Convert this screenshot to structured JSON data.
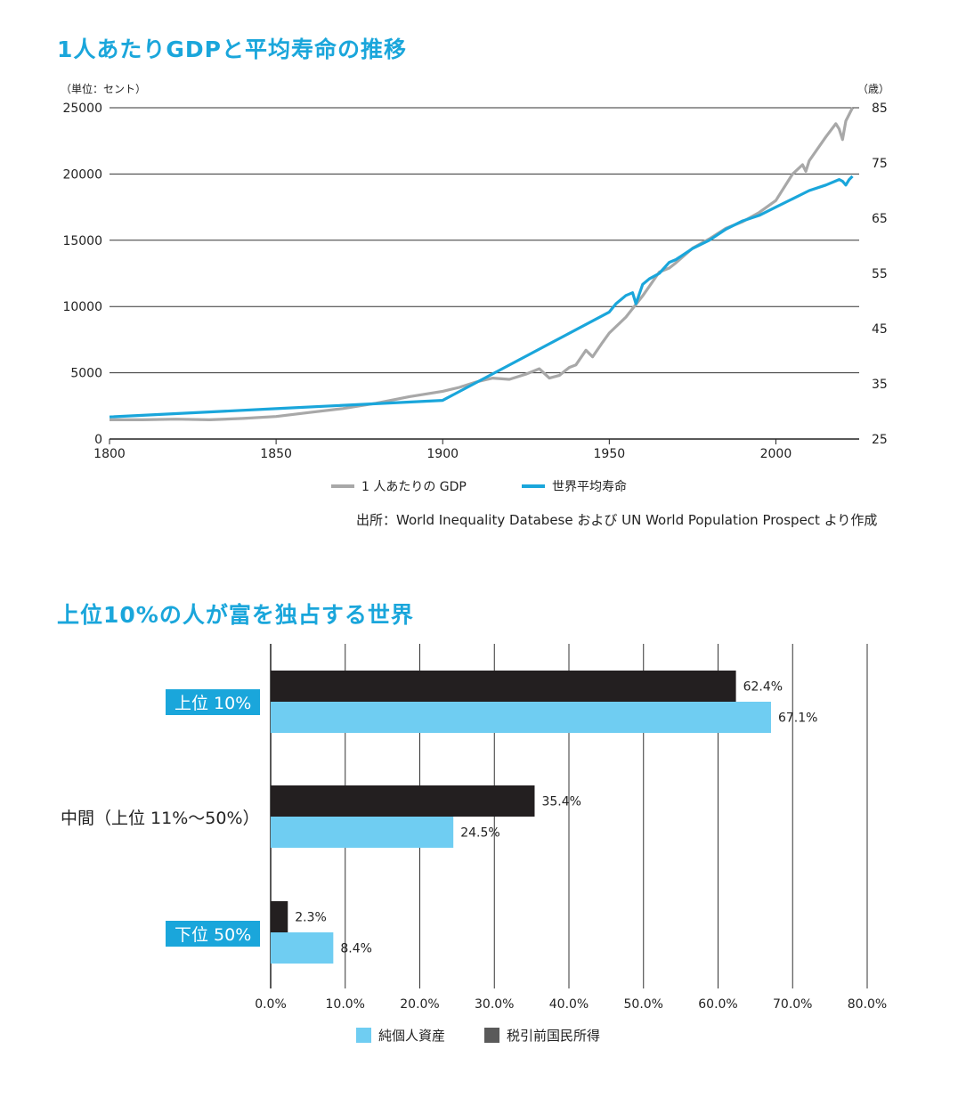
{
  "chart1": {
    "title": "1人あたりGDPと平均寿命の推移",
    "left_unit": "（単位：セント）",
    "right_unit": "（歳）",
    "source": "出所：World Inequality Databese および UN World Population Prospect より作成",
    "colors": {
      "gdp": "#a8a8a8",
      "life": "#1aa6db"
    }
  },
  "chart2": {
    "title": "上位10%の人が富を独占する世界",
    "colors": {
      "wealth": "#6fcdf2",
      "income": "#231f20"
    }
  },
  "chart_data": [
    {
      "type": "line",
      "title": "1人あたりGDPと平均寿命の推移",
      "ylabel": "（単位：セント）",
      "y2label": "（歳）",
      "xlim": [
        1800,
        2025
      ],
      "ylim": [
        0,
        25000
      ],
      "y2lim": [
        25,
        85
      ],
      "xticks": [
        1800,
        1850,
        1900,
        1950,
        2000
      ],
      "yticks": [
        0,
        5000,
        10000,
        15000,
        20000,
        25000
      ],
      "y2ticks": [
        25,
        35,
        45,
        55,
        65,
        75,
        85
      ],
      "grid": true,
      "legend_position": "bottom",
      "series": [
        {
          "name": "1 人あたりの GDP",
          "axis": "left",
          "x": [
            1800,
            1810,
            1820,
            1830,
            1840,
            1850,
            1860,
            1870,
            1880,
            1890,
            1900,
            1905,
            1910,
            1915,
            1920,
            1925,
            1929,
            1932,
            1935,
            1938,
            1940,
            1943,
            1945,
            1948,
            1950,
            1955,
            1960,
            1965,
            1968,
            1970,
            1975,
            1980,
            1985,
            1990,
            1995,
            2000,
            2005,
            2008,
            2009,
            2010,
            2015,
            2018,
            2019,
            2020,
            2021,
            2023
          ],
          "y": [
            1450,
            1450,
            1500,
            1450,
            1550,
            1700,
            2000,
            2300,
            2700,
            3200,
            3600,
            3900,
            4300,
            4600,
            4500,
            4900,
            5300,
            4600,
            4800,
            5400,
            5600,
            6700,
            6200,
            7300,
            8000,
            9200,
            10800,
            12600,
            12900,
            13300,
            14400,
            15100,
            15900,
            16400,
            17100,
            18000,
            20000,
            20700,
            20200,
            21000,
            22800,
            23800,
            23400,
            22600,
            24000,
            25000
          ]
        },
        {
          "name": "世界平均寿命",
          "axis": "right",
          "x": [
            1800,
            1850,
            1900,
            1950,
            1952,
            1955,
            1957,
            1958,
            1960,
            1962,
            1965,
            1968,
            1970,
            1975,
            1980,
            1985,
            1990,
            1995,
            2000,
            2005,
            2010,
            2015,
            2019,
            2020,
            2021,
            2022,
            2023
          ],
          "y": [
            29,
            30.5,
            32,
            48,
            49.5,
            51,
            51.5,
            49.5,
            53,
            54,
            55,
            57,
            57.5,
            59.5,
            61,
            63,
            64.5,
            65.5,
            67,
            68.5,
            70,
            71,
            72,
            71.7,
            71,
            72,
            72.6
          ]
        }
      ]
    },
    {
      "type": "bar",
      "orientation": "horizontal",
      "title": "上位10%の人が富を独占する世界",
      "categories": [
        "上位 10%",
        "中間（上位 11%〜50%）",
        "下位 50%"
      ],
      "xlim": [
        0,
        80
      ],
      "xticks": [
        "0.0%",
        "10.0%",
        "20.0%",
        "30.0%",
        "40.0%",
        "50.0%",
        "60.0%",
        "70.0%",
        "80.0%"
      ],
      "legend_position": "bottom",
      "series": [
        {
          "name": "税引前国民所得",
          "values": [
            62.4,
            35.4,
            2.3
          ],
          "labels": [
            "62.4%",
            "35.4%",
            "2.3%"
          ]
        },
        {
          "name": "純個人資産",
          "values": [
            67.1,
            24.5,
            8.4
          ],
          "labels": [
            "67.1%",
            "24.5%",
            "8.4%"
          ]
        }
      ],
      "legend_order": [
        "純個人資産",
        "税引前国民所得"
      ]
    }
  ]
}
